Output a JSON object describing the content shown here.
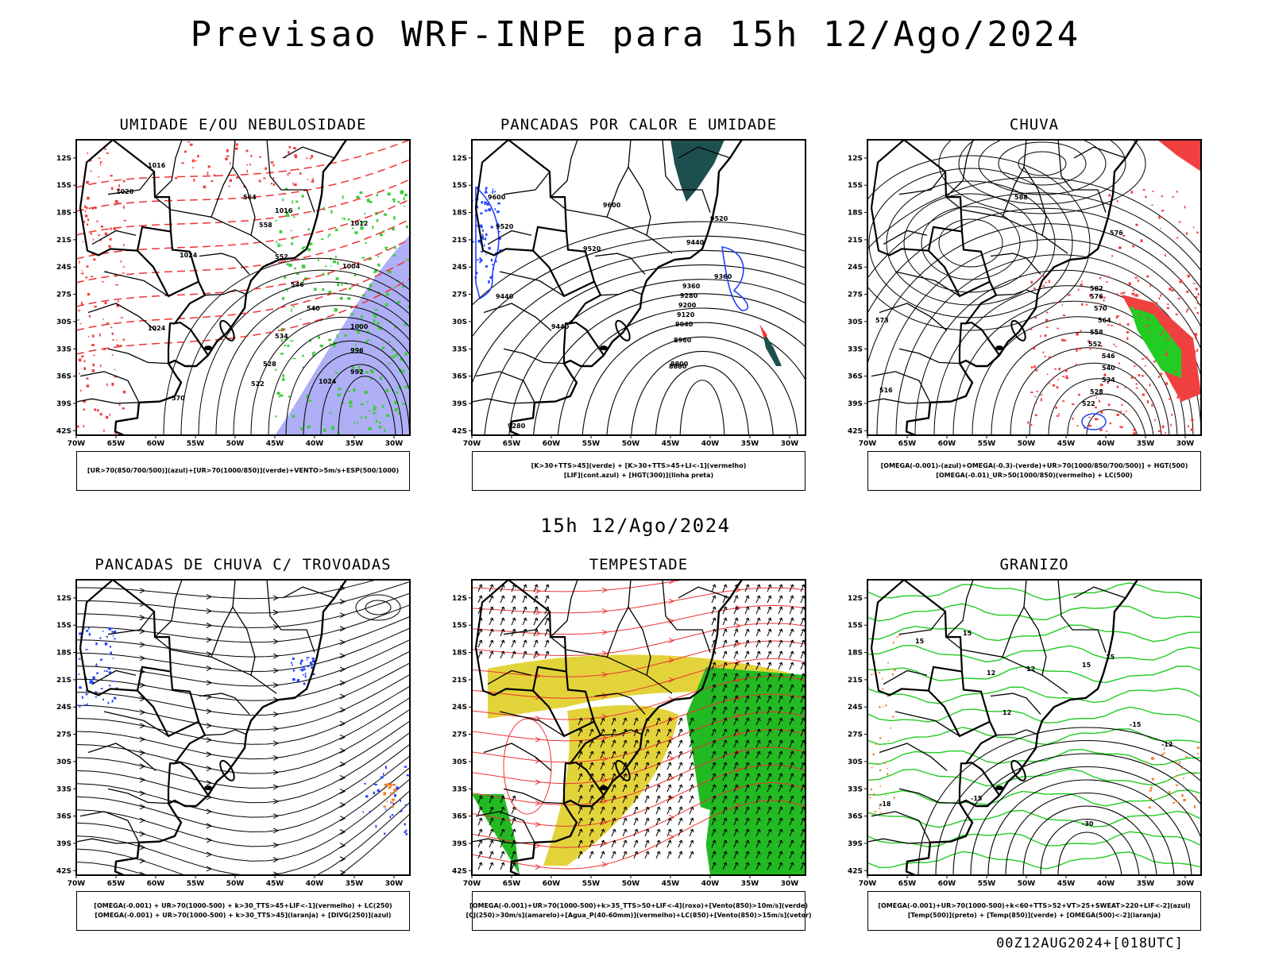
{
  "main_title": "Previsao WRF-INPE  para 15h 12/Ago/2024",
  "mid_title": "15h 12/Ago/2024",
  "footer": "00Z12AUG2024+[018UTC]",
  "axis": {
    "lat_labels": [
      "12S",
      "15S",
      "18S",
      "21S",
      "24S",
      "27S",
      "30S",
      "33S",
      "36S",
      "39S",
      "42S"
    ],
    "lon_labels": [
      "70W",
      "65W",
      "60W",
      "55W",
      "50W",
      "45W",
      "40W",
      "35W",
      "30W"
    ]
  },
  "panels": [
    {
      "title": "UMIDADE E/OU NEBULOSIDADE",
      "legend": [
        "[UR>70(850/700/500)](azul)+[UR>70(1000/850)](verde)+VENTO>5m/s+ESP(500/1000)"
      ],
      "contour_labels": [
        "1016",
        "1020",
        "1024",
        "1024",
        "1016",
        "1012",
        "1004",
        "1000",
        "996",
        "992",
        "1024",
        "570",
        "564",
        "558",
        "552",
        "546",
        "540",
        "534",
        "528",
        "522"
      ]
    },
    {
      "title": "PANCADAS POR CALOR E UMIDADE",
      "legend": [
        "[K>30+TTS>45](verde) + [K>30+TTS>45+LI<-1](vermelho)",
        "[LIF](cont.azul) + [HGT(300)](linha preta)"
      ],
      "contour_labels": [
        "9600",
        "9600",
        "9520",
        "9520",
        "9520",
        "9440",
        "9440",
        "9440",
        "9360",
        "9360",
        "9280",
        "9200",
        "9120",
        "9040",
        "8960",
        "8880",
        "8800",
        "9280"
      ]
    },
    {
      "title": "CHUVA",
      "legend": [
        "[OMEGA(-0.001)-(azul)+OMEGA(-0.3)-(verde)+UR>70(1000/850/700/500)] + HGT(500)",
        "[OMEGA(-0.01)_UR>50(1000/850)(vermelho) + LC(500)"
      ],
      "contour_labels": [
        "588",
        "582",
        "576",
        "570",
        "564",
        "558",
        "552",
        "546",
        "540",
        "534",
        "528",
        "522",
        "516",
        "573",
        "576"
      ]
    },
    {
      "title": "PANCADAS DE CHUVA C/ TROVOADAS",
      "legend": [
        "[OMEGA(-0.001) + UR>70(1000-500) + k>30_TTS>45+LIF<-1](vermelho) + LC(250)",
        "[OMEGA(-0.001) + UR>70(1000-500) + k>30_TTS>45](laranja) + [DIVG(250)](azul)"
      ],
      "contour_labels": []
    },
    {
      "title": "TEMPESTADE",
      "legend": [
        "[OMEGA(-0.001)+UR>70(1000-500)+k>35_TTS>50+LIF<-4](roxo)+[Vento(850)>10m/s](verde)",
        "[CJ(250)>30m/s](amarelo)+[Agua_P(40-60mm)](vermelho)+LC(850)+[Vento(850)>15m/s](vetor)"
      ],
      "contour_labels": []
    },
    {
      "title": "GRANIZO",
      "legend": [
        "[OMEGA(-0.001)+UR>70(1000-500)+k<60+TTS>52+VT>25+SWEAT>220+LIF<-2](azul)",
        "[Temp(500)](preto) + [Temp(850)](verde) + [OMEGA(500)<-2](laranja)"
      ],
      "contour_labels": [
        "15",
        "15",
        "12",
        "12",
        "15",
        "15",
        "12",
        "-15",
        "-12",
        "-15",
        "-30",
        "-18"
      ]
    }
  ]
}
